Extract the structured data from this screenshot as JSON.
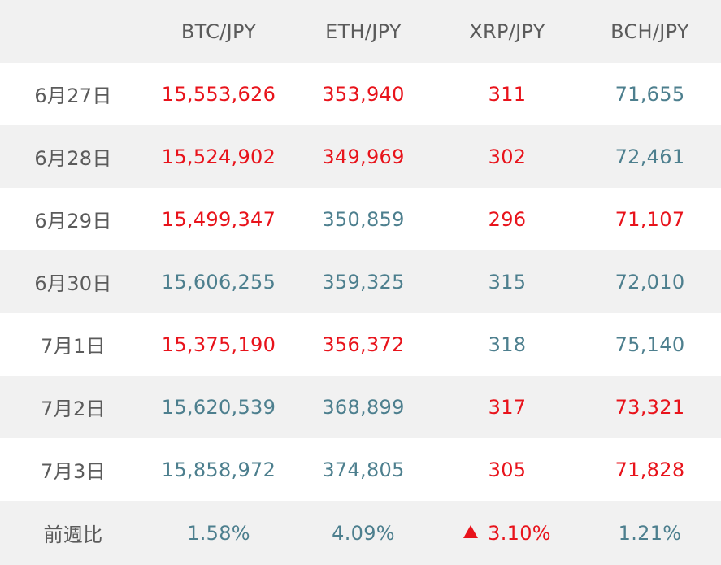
{
  "header": {
    "corner": "",
    "columns": [
      "BTC/JPY",
      "ETH/JPY",
      "XRP/JPY",
      "BCH/JPY"
    ]
  },
  "rows": [
    {
      "date": "6月27日",
      "values": [
        "15,553,626",
        "353,940",
        "311",
        "71,655"
      ],
      "directions": [
        "up",
        "up",
        "up",
        "down"
      ]
    },
    {
      "date": "6月28日",
      "values": [
        "15,524,902",
        "349,969",
        "302",
        "72,461"
      ],
      "directions": [
        "up",
        "up",
        "up",
        "down"
      ]
    },
    {
      "date": "6月29日",
      "values": [
        "15,499,347",
        "350,859",
        "296",
        "71,107"
      ],
      "directions": [
        "up",
        "down",
        "up",
        "up"
      ]
    },
    {
      "date": "6月30日",
      "values": [
        "15,606,255",
        "359,325",
        "315",
        "72,010"
      ],
      "directions": [
        "down",
        "down",
        "down",
        "down"
      ]
    },
    {
      "date": "7月1日",
      "values": [
        "15,375,190",
        "356,372",
        "318",
        "75,140"
      ],
      "directions": [
        "up",
        "up",
        "down",
        "down"
      ]
    },
    {
      "date": "7月2日",
      "values": [
        "15,620,539",
        "368,899",
        "317",
        "73,321"
      ],
      "directions": [
        "down",
        "down",
        "up",
        "up"
      ]
    },
    {
      "date": "7月3日",
      "values": [
        "15,858,972",
        "374,805",
        "305",
        "71,828"
      ],
      "directions": [
        "down",
        "down",
        "up",
        "up"
      ]
    }
  ],
  "footer": {
    "label": "前週比",
    "values": [
      "1.58%",
      "4.09%",
      "3.10%",
      "1.21%"
    ],
    "directions": [
      "down",
      "down",
      "up",
      "down"
    ],
    "indicator_icon": "triangle-up-icon"
  },
  "colors": {
    "up": "#e8131b",
    "down": "#4d7f8e",
    "label": "#5b5b5b",
    "shade": "#f1f1f1"
  }
}
